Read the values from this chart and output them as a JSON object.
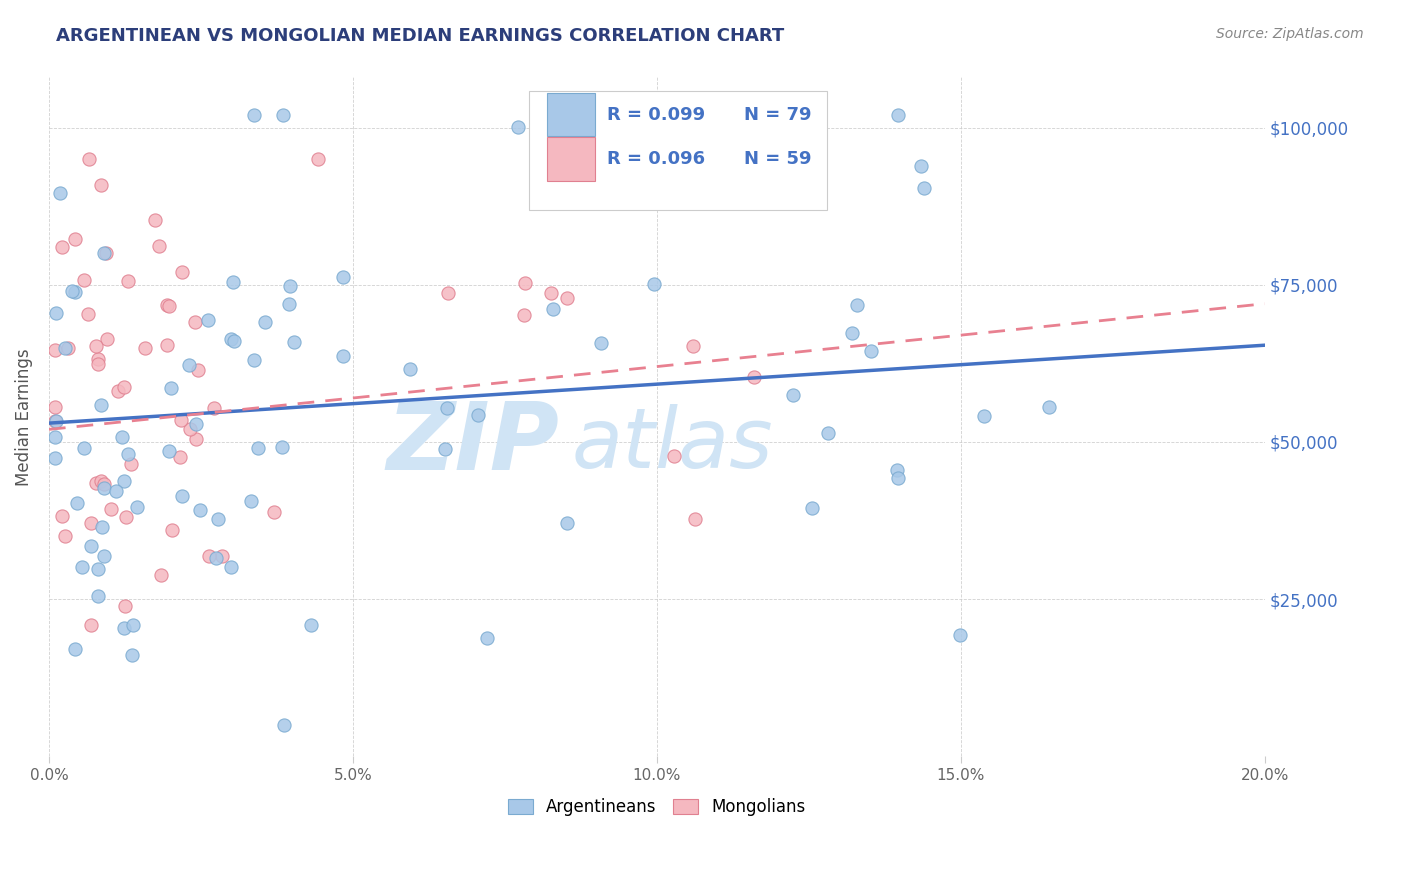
{
  "title": "ARGENTINEAN VS MONGOLIAN MEDIAN EARNINGS CORRELATION CHART",
  "source": "Source: ZipAtlas.com",
  "ylabel": "Median Earnings",
  "ytick_labels": [
    "$25,000",
    "$50,000",
    "$75,000",
    "$100,000"
  ],
  "ytick_values": [
    25000,
    50000,
    75000,
    100000
  ],
  "xlim": [
    0.0,
    0.2
  ],
  "ylim": [
    0,
    108000
  ],
  "title_color": "#2c3e7a",
  "source_color": "#888888",
  "ytick_color": "#4472c4",
  "watermark_zip": "ZIP",
  "watermark_atlas": "atlas",
  "watermark_color": "#d0e4f5",
  "argentinean_color": "#a8c8e8",
  "argentinean_edge_color": "#7aaad0",
  "mongolian_color": "#f5b8c0",
  "mongolian_edge_color": "#e08090",
  "argentinean_line_color": "#4472c4",
  "mongolian_line_color": "#e88090",
  "legend_R_argentinean": "R = 0.099",
  "legend_N_argentinean": "N = 79",
  "legend_R_mongolian": "R = 0.096",
  "legend_N_mongolian": "N = 59",
  "legend_text_color": "#333333",
  "legend_val_color": "#4472c4",
  "bottom_legend_label1": "Argentineans",
  "bottom_legend_label2": "Mongolians"
}
